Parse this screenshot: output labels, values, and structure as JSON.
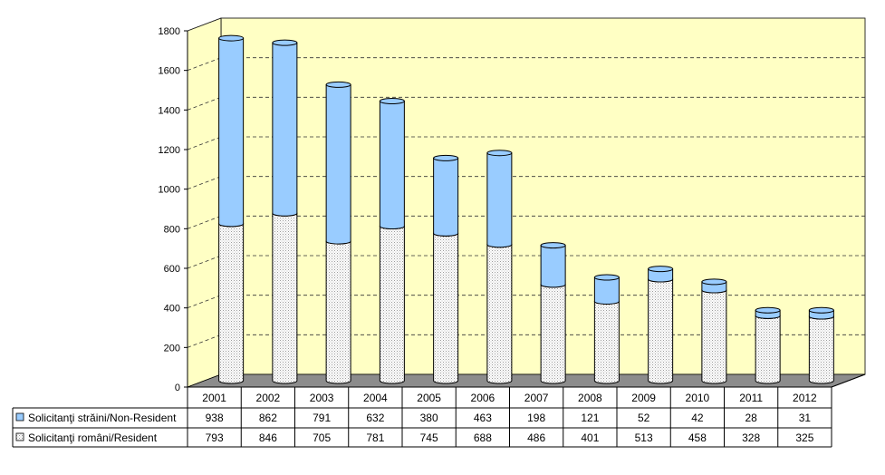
{
  "colors": {
    "wall": "#ffffc4",
    "floor": "#8c8c8c",
    "non_resident": "#99ccff",
    "resident": "#ffffff",
    "gridline": "#333333",
    "axis": "#000000"
  },
  "chart_data": {
    "type": "bar",
    "stacked": true,
    "three_d": true,
    "categories": [
      "2001",
      "2002",
      "2003",
      "2004",
      "2005",
      "2006",
      "2007",
      "2008",
      "2009",
      "2010",
      "2011",
      "2012"
    ],
    "ylim": [
      0,
      1800
    ],
    "yticks": [
      "0",
      "200",
      "400",
      "600",
      "800",
      "1000",
      "1200",
      "1400",
      "1600",
      "1800"
    ],
    "grid": true,
    "legend": "data-table-left",
    "series": [
      {
        "name": "Solicitanţi străini/Non-Resident",
        "color": "#99ccff",
        "values": [
          938,
          862,
          791,
          632,
          380,
          463,
          198,
          121,
          52,
          42,
          28,
          31
        ]
      },
      {
        "name": "Solicitanţi români/Resident",
        "color": "#ffffff",
        "pattern": "dotted",
        "values": [
          793,
          846,
          705,
          781,
          745,
          688,
          486,
          401,
          513,
          458,
          328,
          325
        ]
      }
    ]
  }
}
